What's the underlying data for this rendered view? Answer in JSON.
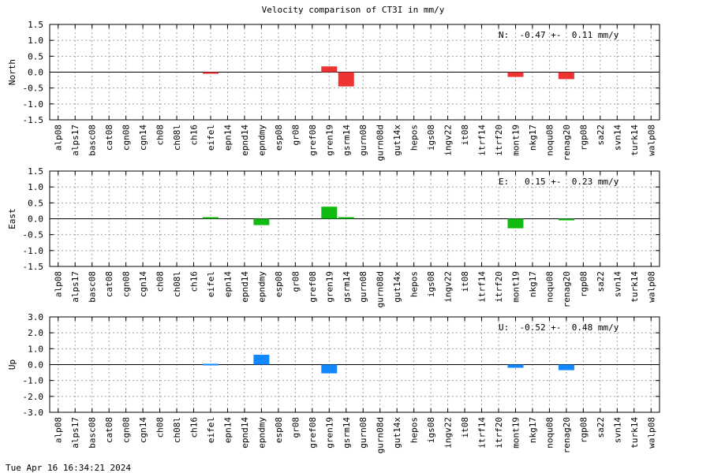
{
  "title": "Velocity comparison of CT3I in mm/y",
  "timestamp": "Tue Apr 16 16:34:21 2024",
  "chart_data": {
    "type": "bar",
    "categories": [
      "alp08",
      "alps17",
      "basc08",
      "cat08",
      "cgn08",
      "cgn14",
      "ch08",
      "ch08l",
      "ch16",
      "eifel",
      "epn14",
      "epnd14",
      "epndmy",
      "esp08",
      "gr08",
      "gref08",
      "gren19",
      "gsrm14",
      "gurn08",
      "gurn08d",
      "gut14x",
      "hepos",
      "igs08",
      "ingv22",
      "it08",
      "itrf14",
      "itrf20",
      "mont19",
      "nkg17",
      "noqu08",
      "renag20",
      "rgp08",
      "sa22",
      "svn14",
      "turk14",
      "walp08"
    ],
    "grid": true,
    "panels": [
      {
        "ylabel": "North",
        "ylim": [
          -1.5,
          1.5
        ],
        "yticks": [
          "1.5",
          "1.0",
          "0.5",
          "0.0",
          "-0.5",
          "-1.0",
          "-1.5"
        ],
        "color": "#ee3333",
        "summary": "N:  -0.47 +-  0.11 mm/y",
        "values": [
          0,
          0,
          0,
          0,
          0,
          0,
          0,
          0,
          0,
          -0.05,
          0,
          0,
          0,
          0,
          0,
          0,
          0.18,
          -0.45,
          0,
          0,
          0,
          0,
          0,
          0,
          0,
          0,
          0,
          -0.15,
          0,
          0,
          -0.22,
          0,
          0,
          0,
          0,
          0
        ]
      },
      {
        "ylabel": "East",
        "ylim": [
          -1.5,
          1.5
        ],
        "yticks": [
          "1.5",
          "1.0",
          "0.5",
          "0.0",
          "-0.5",
          "-1.0",
          "-1.5"
        ],
        "color": "#11bb11",
        "summary": "E:   0.15 +-  0.23 mm/y",
        "values": [
          0,
          0,
          0,
          0,
          0,
          0,
          0,
          0,
          0,
          0.05,
          0,
          0,
          -0.2,
          0,
          0,
          0,
          0.38,
          0.05,
          0,
          0,
          0,
          0,
          0,
          0,
          0,
          0,
          0,
          -0.3,
          0,
          0,
          -0.05,
          0,
          0,
          0,
          0,
          0
        ]
      },
      {
        "ylabel": "Up",
        "ylim": [
          -3.0,
          3.0
        ],
        "yticks": [
          "3.0",
          "2.0",
          "1.0",
          "0.0",
          "-1.0",
          "-2.0",
          "-3.0"
        ],
        "color": "#1188ff",
        "summary": "U:  -0.52 +-  0.48 mm/y",
        "values": [
          0,
          0,
          0,
          0,
          0,
          0,
          0,
          0,
          0,
          0.05,
          0,
          0,
          0.62,
          0,
          0,
          0,
          -0.55,
          0,
          0,
          0,
          0,
          0,
          0,
          0,
          0,
          0,
          0,
          -0.2,
          0,
          0,
          -0.35,
          0,
          0,
          0,
          0,
          0
        ]
      }
    ]
  }
}
